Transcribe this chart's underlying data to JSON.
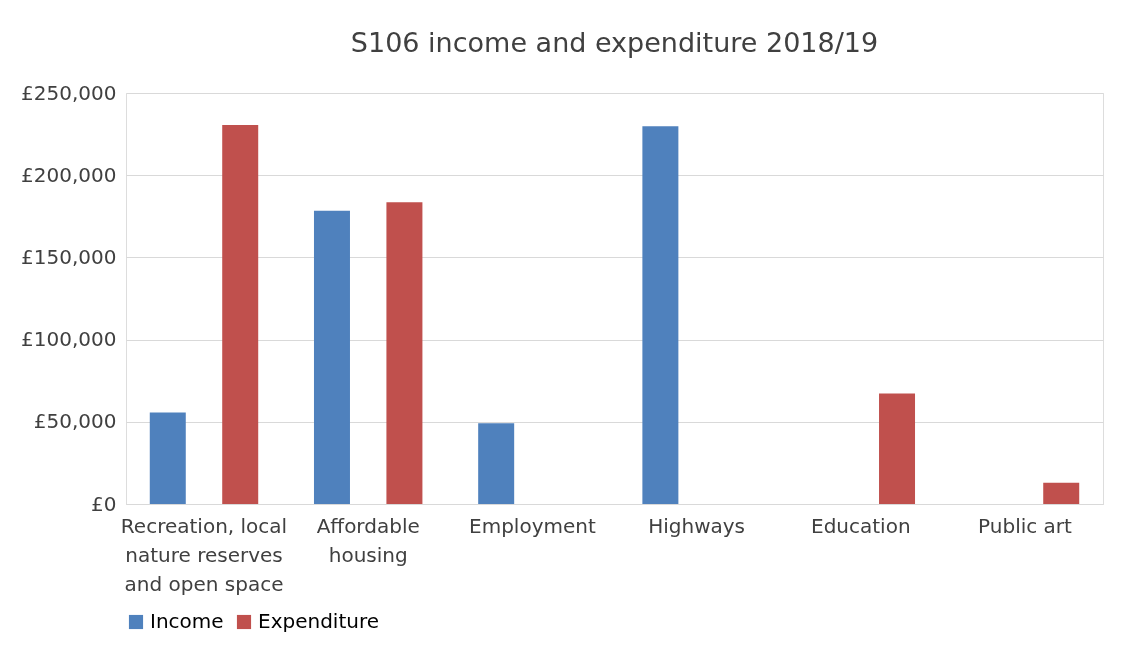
{
  "chart_data": {
    "type": "bar",
    "title": "S106 income and expenditure 2018/19",
    "categories": [
      "Recreation, local nature reserves and open space",
      "Affordable housing",
      "Employment",
      "Highways",
      "Education",
      "Public art"
    ],
    "series": [
      {
        "name": "Income",
        "color": "#4f81bd",
        "values": [
          55600,
          178400,
          49100,
          229800,
          null,
          null
        ]
      },
      {
        "name": "Expenditure",
        "color": "#c0504d",
        "values": [
          230500,
          183500,
          null,
          null,
          67200,
          13000
        ]
      }
    ],
    "ylim": [
      0,
      250000
    ],
    "yticks": [
      {
        "value": 0,
        "label": "£0"
      },
      {
        "value": 50000,
        "label": "£50,000"
      },
      {
        "value": 100000,
        "label": "£100,000"
      },
      {
        "value": 150000,
        "label": "£150,000"
      },
      {
        "value": 200000,
        "label": "£200,000"
      },
      {
        "value": 250000,
        "label": "£250,000"
      }
    ],
    "grid": "y",
    "legend": "bottom"
  }
}
